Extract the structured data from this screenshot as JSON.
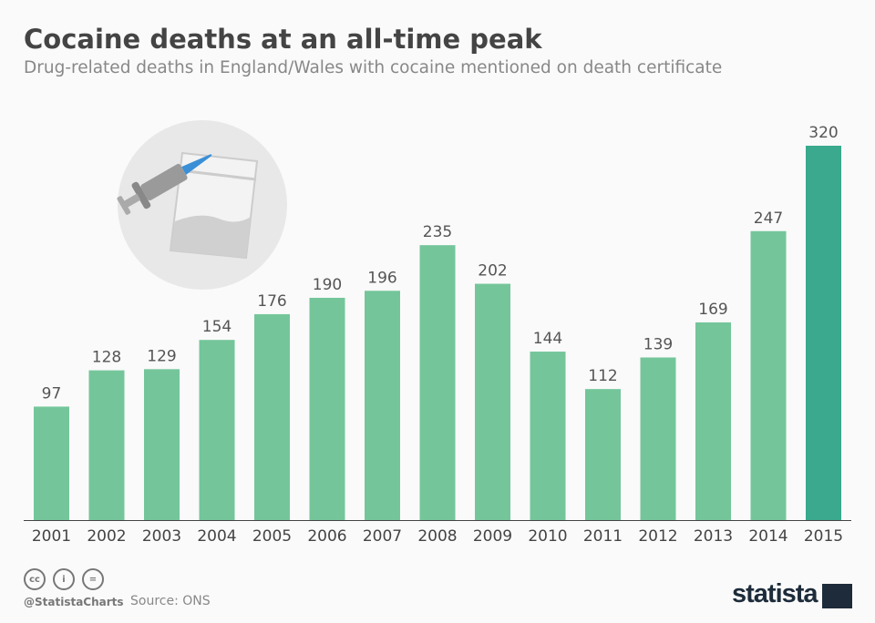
{
  "title": "Cocaine deaths at an all-time peak",
  "subtitle": "Drug-related deaths in England/Wales with cocaine mentioned on death certificate",
  "footer": {
    "handle": "@StatistaCharts",
    "source": "Source: ONS",
    "logo": "statista",
    "license_icons": [
      "cc-icon",
      "attribution-icon",
      "no-derivatives-icon"
    ]
  },
  "colors": {
    "bar": "#74c69a",
    "highlight": "#3aa98e"
  },
  "chart_data": {
    "type": "bar",
    "title": "Cocaine deaths at an all-time peak",
    "xlabel": "",
    "ylabel": "",
    "ylim": [
      0,
      320
    ],
    "grid": false,
    "categories": [
      "2001",
      "2002",
      "2003",
      "2004",
      "2005",
      "2006",
      "2007",
      "2008",
      "2009",
      "2010",
      "2011",
      "2012",
      "2013",
      "2014",
      "2015"
    ],
    "values": [
      97,
      128,
      129,
      154,
      176,
      190,
      196,
      235,
      202,
      144,
      112,
      139,
      169,
      247,
      320
    ]
  }
}
